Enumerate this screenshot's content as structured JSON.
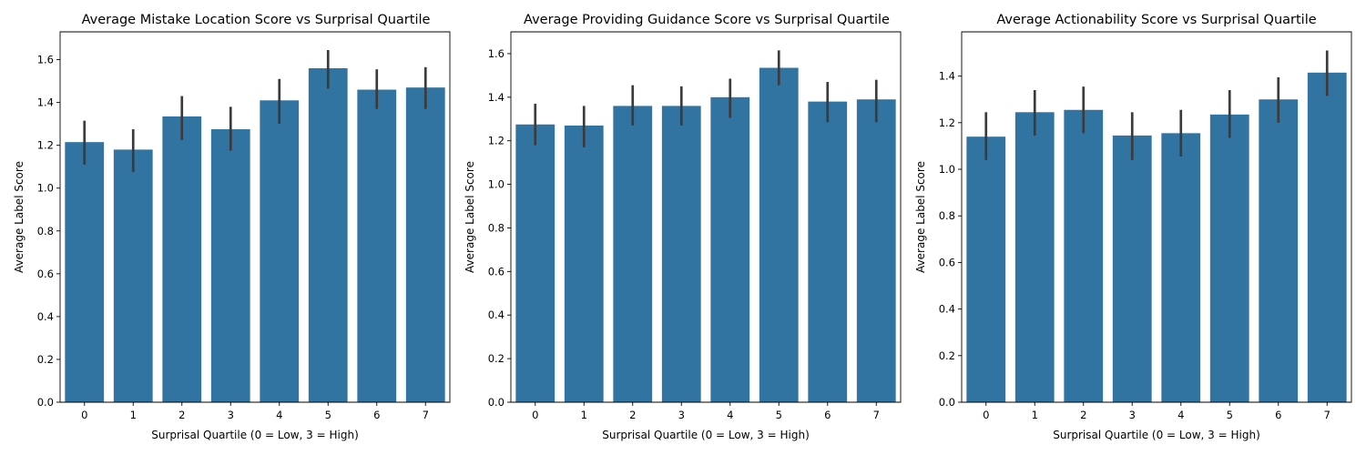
{
  "colors": {
    "bar": "#3274a1",
    "errorbar": "#3b3b3b"
  },
  "chart_data": [
    {
      "type": "bar",
      "title": "Average  Mistake Location Score vs Surprisal Quartile",
      "xlabel": "Surprisal Quartile (0 = Low, 3 = High)",
      "ylabel": "Average Label Score",
      "categories": [
        "0",
        "1",
        "2",
        "3",
        "4",
        "5",
        "6",
        "7"
      ],
      "values": [
        1.215,
        1.18,
        1.335,
        1.275,
        1.41,
        1.56,
        1.46,
        1.47
      ],
      "error_low": [
        1.11,
        1.075,
        1.225,
        1.175,
        1.3,
        1.465,
        1.37,
        1.37
      ],
      "error_high": [
        1.315,
        1.275,
        1.43,
        1.38,
        1.51,
        1.645,
        1.555,
        1.565
      ],
      "ylim": [
        0,
        1.73
      ],
      "yticks": [
        0.0,
        0.2,
        0.4,
        0.6,
        0.8,
        1.0,
        1.2,
        1.4,
        1.6
      ],
      "ytick_labels": [
        "0.0",
        "0.2",
        "0.4",
        "0.6",
        "0.8",
        "1.0",
        "1.2",
        "1.4",
        "1.6"
      ],
      "grid": false
    },
    {
      "type": "bar",
      "title": "Average  Providing Guidance Score vs Surprisal Quartile",
      "xlabel": "Surprisal Quartile (0 = Low, 3 = High)",
      "ylabel": "Average Label Score",
      "categories": [
        "0",
        "1",
        "2",
        "3",
        "4",
        "5",
        "6",
        "7"
      ],
      "values": [
        1.275,
        1.27,
        1.36,
        1.36,
        1.4,
        1.535,
        1.38,
        1.39
      ],
      "error_low": [
        1.18,
        1.17,
        1.27,
        1.27,
        1.305,
        1.455,
        1.285,
        1.285
      ],
      "error_high": [
        1.37,
        1.36,
        1.455,
        1.45,
        1.485,
        1.615,
        1.47,
        1.48
      ],
      "ylim": [
        0,
        1.7
      ],
      "yticks": [
        0.0,
        0.2,
        0.4,
        0.6,
        0.8,
        1.0,
        1.2,
        1.4,
        1.6
      ],
      "ytick_labels": [
        "0.0",
        "0.2",
        "0.4",
        "0.6",
        "0.8",
        "1.0",
        "1.2",
        "1.4",
        "1.6"
      ],
      "grid": false
    },
    {
      "type": "bar",
      "title": "Average  Actionability Score vs Surprisal Quartile",
      "xlabel": "Surprisal Quartile (0 = Low, 3 = High)",
      "ylabel": "Average Label Score",
      "categories": [
        "0",
        "1",
        "2",
        "3",
        "4",
        "5",
        "6",
        "7"
      ],
      "values": [
        1.14,
        1.245,
        1.255,
        1.145,
        1.155,
        1.235,
        1.3,
        1.415
      ],
      "error_low": [
        1.04,
        1.145,
        1.155,
        1.04,
        1.055,
        1.135,
        1.2,
        1.315
      ],
      "error_high": [
        1.245,
        1.34,
        1.355,
        1.245,
        1.255,
        1.34,
        1.395,
        1.51
      ],
      "ylim": [
        0,
        1.59
      ],
      "yticks": [
        0.0,
        0.2,
        0.4,
        0.6,
        0.8,
        1.0,
        1.2,
        1.4
      ],
      "ytick_labels": [
        "0.0",
        "0.2",
        "0.4",
        "0.6",
        "0.8",
        "1.0",
        "1.2",
        "1.4"
      ],
      "grid": false
    }
  ]
}
